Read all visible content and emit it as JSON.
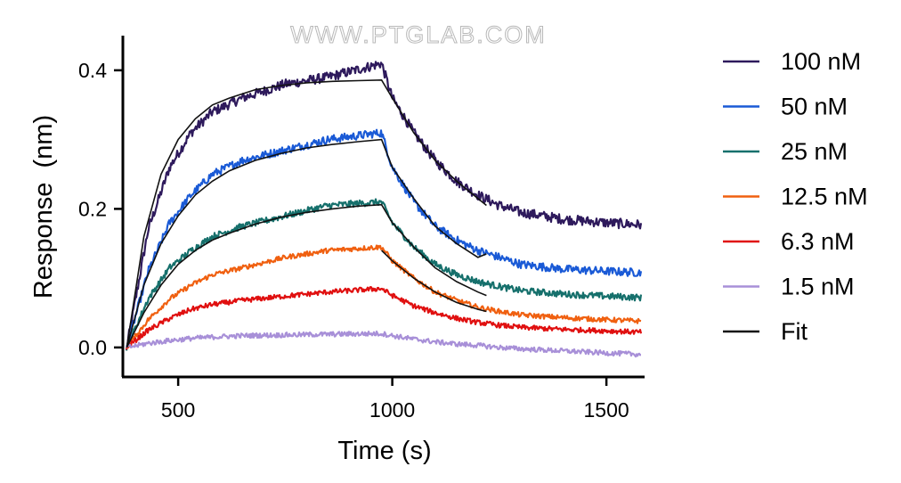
{
  "watermark": "WWW.PTGLAB.COM",
  "chart_data": {
    "type": "line",
    "xlabel": "Time (s)",
    "ylabel": "Response  (nm)",
    "xlim": [
      375,
      1585
    ],
    "ylim": [
      -0.04,
      0.45
    ],
    "xticks": [
      500,
      1000,
      1500
    ],
    "yticks": [
      0.0,
      0.2,
      0.4
    ],
    "xtick_labels": [
      "500",
      "1000",
      "1500"
    ],
    "ytick_labels": [
      "0.0",
      "0.2",
      "0.4"
    ],
    "grid": false,
    "legend_position": "right",
    "association_window": [
      380,
      975
    ],
    "dissociation_end": 1580,
    "series": [
      {
        "name": "100 nM",
        "color": "#2e1a5c",
        "x": [
          380,
          430,
          480,
          530,
          580,
          650,
          750,
          850,
          975,
          1000,
          1050,
          1100,
          1150,
          1200,
          1250,
          1300,
          1400,
          1500,
          1580
        ],
        "y": [
          0.0,
          0.17,
          0.26,
          0.31,
          0.34,
          0.36,
          0.38,
          0.39,
          0.41,
          0.36,
          0.31,
          0.27,
          0.24,
          0.22,
          0.205,
          0.195,
          0.185,
          0.18,
          0.177
        ]
      },
      {
        "name": "50 nM",
        "color": "#1a5ad6",
        "x": [
          380,
          430,
          480,
          530,
          580,
          650,
          750,
          850,
          975,
          1000,
          1050,
          1100,
          1150,
          1200,
          1250,
          1300,
          1400,
          1500,
          1580
        ],
        "y": [
          0.0,
          0.11,
          0.18,
          0.22,
          0.25,
          0.27,
          0.285,
          0.3,
          0.31,
          0.26,
          0.21,
          0.175,
          0.155,
          0.14,
          0.13,
          0.12,
          0.113,
          0.11,
          0.108
        ]
      },
      {
        "name": "25 nM",
        "color": "#16706c",
        "x": [
          380,
          430,
          480,
          530,
          580,
          650,
          750,
          850,
          975,
          1000,
          1050,
          1100,
          1150,
          1200,
          1250,
          1300,
          1400,
          1500,
          1580
        ],
        "y": [
          0.0,
          0.07,
          0.115,
          0.14,
          0.16,
          0.175,
          0.19,
          0.205,
          0.21,
          0.18,
          0.145,
          0.12,
          0.105,
          0.095,
          0.088,
          0.082,
          0.077,
          0.074,
          0.072
        ]
      },
      {
        "name": "12.5 nM",
        "color": "#f06010",
        "x": [
          380,
          430,
          480,
          530,
          580,
          650,
          750,
          850,
          975,
          1000,
          1050,
          1100,
          1150,
          1200,
          1250,
          1300,
          1400,
          1500,
          1580
        ],
        "y": [
          0.0,
          0.04,
          0.07,
          0.09,
          0.105,
          0.115,
          0.13,
          0.14,
          0.145,
          0.125,
          0.1,
          0.08,
          0.068,
          0.058,
          0.052,
          0.047,
          0.043,
          0.04,
          0.038
        ]
      },
      {
        "name": "6.3 nM",
        "color": "#e01010",
        "x": [
          380,
          430,
          480,
          530,
          580,
          650,
          750,
          850,
          975,
          1000,
          1050,
          1100,
          1150,
          1200,
          1250,
          1300,
          1400,
          1500,
          1580
        ],
        "y": [
          0.0,
          0.025,
          0.042,
          0.055,
          0.062,
          0.068,
          0.074,
          0.08,
          0.085,
          0.075,
          0.06,
          0.05,
          0.042,
          0.036,
          0.032,
          0.029,
          0.026,
          0.024,
          0.022
        ]
      },
      {
        "name": "1.5 nM",
        "color": "#a890d8",
        "x": [
          380,
          430,
          480,
          530,
          580,
          650,
          750,
          850,
          975,
          1000,
          1050,
          1100,
          1150,
          1200,
          1250,
          1300,
          1400,
          1500,
          1580
        ],
        "y": [
          0.0,
          0.006,
          0.01,
          0.013,
          0.015,
          0.017,
          0.018,
          0.019,
          0.02,
          0.017,
          0.012,
          0.008,
          0.005,
          0.003,
          0.0,
          -0.002,
          -0.005,
          -0.008,
          -0.01
        ]
      },
      {
        "name": "Fit",
        "color": "#111111",
        "segments": [
          {
            "x": [
              380,
              420,
              460,
              500,
              540,
              580,
              620,
              680,
              740,
              800,
              860,
              920,
              975,
              1000,
              1050,
              1100,
              1150,
              1200,
              1220
            ],
            "y": [
              0.0,
              0.16,
              0.25,
              0.3,
              0.33,
              0.35,
              0.36,
              0.372,
              0.378,
              0.382,
              0.384,
              0.385,
              0.386,
              0.36,
              0.31,
              0.27,
              0.24,
              0.215,
              0.205
            ]
          },
          {
            "x": [
              380,
              420,
              460,
              500,
              540,
              580,
              620,
              680,
              740,
              800,
              860,
              920,
              975,
              1000,
              1050,
              1100,
              1150,
              1200,
              1220
            ],
            "y": [
              0.0,
              0.09,
              0.15,
              0.19,
              0.22,
              0.24,
              0.255,
              0.27,
              0.28,
              0.288,
              0.293,
              0.297,
              0.3,
              0.26,
              0.215,
              0.175,
              0.15,
              0.13,
              0.135
            ]
          },
          {
            "x": [
              380,
              420,
              460,
              500,
              540,
              580,
              620,
              680,
              740,
              800,
              860,
              920,
              975,
              1000,
              1050,
              1100,
              1150,
              1200,
              1220
            ],
            "y": [
              0.0,
              0.05,
              0.09,
              0.12,
              0.14,
              0.155,
              0.165,
              0.178,
              0.188,
              0.195,
              0.2,
              0.204,
              0.206,
              0.18,
              0.145,
              0.115,
              0.095,
              0.08,
              0.075
            ]
          },
          {
            "x": [
              975,
              1000,
              1050,
              1100,
              1150,
              1200,
              1220
            ],
            "y": [
              0.14,
              0.125,
              0.1,
              0.08,
              0.065,
              0.055,
              0.052
            ]
          }
        ]
      }
    ]
  }
}
